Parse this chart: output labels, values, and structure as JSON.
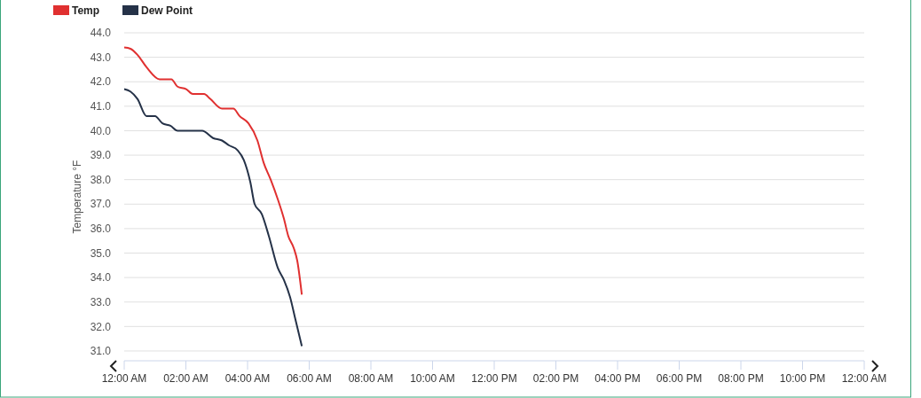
{
  "chart_data": {
    "type": "line",
    "ylabel": "Temperature °F",
    "legend": "top left",
    "grid": "y",
    "marker": "none",
    "line_style": "solid",
    "xlim": [
      0,
      24
    ],
    "xticks": [
      {
        "value": 0,
        "label": "12:00 AM"
      },
      {
        "value": 2,
        "label": "02:00 AM"
      },
      {
        "value": 4,
        "label": "04:00 AM"
      },
      {
        "value": 6,
        "label": "06:00 AM"
      },
      {
        "value": 8,
        "label": "08:00 AM"
      },
      {
        "value": 10,
        "label": "10:00 AM"
      },
      {
        "value": 12,
        "label": "12:00 PM"
      },
      {
        "value": 14,
        "label": "02:00 PM"
      },
      {
        "value": 16,
        "label": "04:00 PM"
      },
      {
        "value": 18,
        "label": "06:00 PM"
      },
      {
        "value": 20,
        "label": "08:00 PM"
      },
      {
        "value": 22,
        "label": "10:00 PM"
      },
      {
        "value": 24,
        "label": "12:00 AM"
      }
    ],
    "ylim": [
      30.6,
      44
    ],
    "yticks": [
      {
        "value": 31,
        "label": "31.0"
      },
      {
        "value": 32,
        "label": "32.0"
      },
      {
        "value": 33,
        "label": "33.0"
      },
      {
        "value": 34,
        "label": "34.0"
      },
      {
        "value": 35,
        "label": "35.0"
      },
      {
        "value": 36,
        "label": "36.0"
      },
      {
        "value": 37,
        "label": "37.0"
      },
      {
        "value": 38,
        "label": "38.0"
      },
      {
        "value": 39,
        "label": "39.0"
      },
      {
        "value": 40,
        "label": "40.0"
      },
      {
        "value": 41,
        "label": "41.0"
      },
      {
        "value": 42,
        "label": "42.0"
      },
      {
        "value": 43,
        "label": "43.0"
      },
      {
        "value": 44,
        "label": "44.0"
      }
    ],
    "series": [
      {
        "name": "Temp",
        "color": "#e03030",
        "x": [
          0,
          0.2,
          0.43,
          0.72,
          1.15,
          1.53,
          1.73,
          2.01,
          2.22,
          2.59,
          2.79,
          3.17,
          3.54,
          3.74,
          4.03,
          4.32,
          4.52,
          4.75,
          4.98,
          5.18,
          5.32,
          5.5,
          5.61,
          5.76
        ],
        "values": [
          43.4,
          43.35,
          43.1,
          42.6,
          42.1,
          42.1,
          41.8,
          41.7,
          41.5,
          41.5,
          41.3,
          40.9,
          40.9,
          40.6,
          40.3,
          39.6,
          38.7,
          38.0,
          37.2,
          36.4,
          35.7,
          35.2,
          34.7,
          33.3
        ]
      },
      {
        "name": "Dew Point",
        "color": "#253248",
        "x": [
          0,
          0.2,
          0.43,
          0.72,
          1.0,
          1.24,
          1.5,
          1.73,
          2.53,
          2.88,
          3.17,
          3.4,
          3.68,
          3.88,
          4.09,
          4.23,
          4.46,
          4.69,
          4.98,
          5.18,
          5.38,
          5.55,
          5.76
        ],
        "values": [
          41.7,
          41.6,
          41.3,
          40.6,
          40.6,
          40.3,
          40.2,
          40.0,
          40.0,
          39.7,
          39.6,
          39.4,
          39.2,
          38.8,
          37.9,
          37.0,
          36.6,
          35.7,
          34.4,
          33.9,
          33.2,
          32.3,
          31.2
        ]
      }
    ]
  }
}
